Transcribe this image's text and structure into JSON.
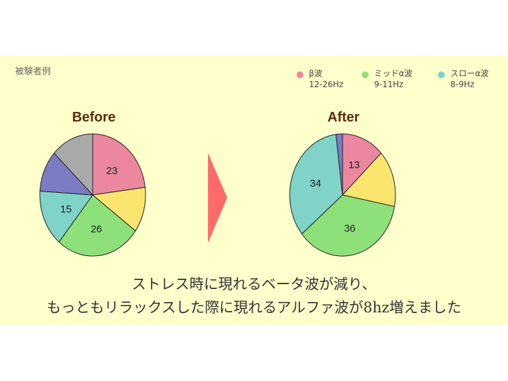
{
  "subject_label": "被験者例",
  "legend": [
    {
      "name": "β波",
      "freq": "12-26Hz",
      "color": "#ec87a0"
    },
    {
      "name": "ミッドα波",
      "freq": "9-11Hz",
      "color": "#8ee07a"
    },
    {
      "name": "スローα波",
      "freq": "8-9Hz",
      "color": "#7fd3c8"
    }
  ],
  "caption": [
    "ストレス時に現れるベータ波が減り、",
    "もっともリラックスした際に現れるアルファ波が8hz増えました"
  ],
  "arrow_color": "#ff6b6b",
  "chart_data": [
    {
      "type": "pie",
      "title": "Before",
      "slices": [
        {
          "value": 23,
          "label": "23",
          "color": "#ec87a0"
        },
        {
          "value": 12,
          "label": "",
          "color": "#fce56e"
        },
        {
          "value": 26,
          "label": "26",
          "color": "#8ee07a"
        },
        {
          "value": 15,
          "label": "15",
          "color": "#7fd3c8"
        },
        {
          "value": 11,
          "label": "",
          "color": "#7b7bc4"
        },
        {
          "value": 13,
          "label": "",
          "color": "#a9a9a9"
        }
      ]
    },
    {
      "type": "pie",
      "title": "After",
      "slices": [
        {
          "value": 13,
          "label": "13",
          "color": "#ec87a0"
        },
        {
          "value": 15,
          "label": "",
          "color": "#fce56e"
        },
        {
          "value": 36,
          "label": "36",
          "color": "#8ee07a"
        },
        {
          "value": 34,
          "label": "34",
          "color": "#7fd3c8"
        },
        {
          "value": 2,
          "label": "",
          "color": "#7b7bc4"
        }
      ]
    }
  ]
}
